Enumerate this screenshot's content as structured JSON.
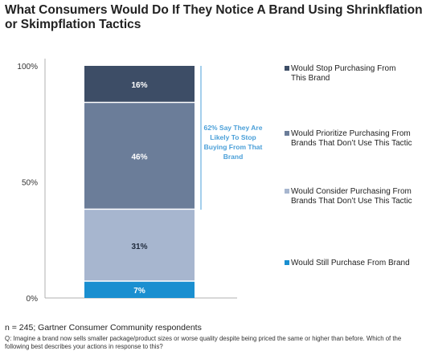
{
  "title": "What Consumers Would Do If They Notice A Brand Using Shrinkflation or Skimpflation Tactics",
  "footnote": "n = 245; Gartner Consumer Community respondents",
  "question": "Q: Imagine a brand now sells smaller package/product sizes or worse quality despite being priced the same or higher than before. Which of the following best describes your actions in response to this?",
  "chart_data": {
    "type": "bar",
    "stacked": true,
    "categories": [
      ""
    ],
    "series": [
      {
        "name": "Would Still Purchase From Brand",
        "values": [
          7
        ],
        "label": "7%",
        "color": "#1a8fd0"
      },
      {
        "name": "Would Consider Purchasing From Brands That Don’t Use This Tactic",
        "values": [
          31
        ],
        "label": "31%",
        "color": "#a7b6cf"
      },
      {
        "name": "Would Prioritize Purchasing From Brands That Don’t Use This Tactic",
        "values": [
          46
        ],
        "label": "46%",
        "color": "#6b7d99"
      },
      {
        "name": "Would Stop Purchasing From This Brand",
        "values": [
          16
        ],
        "label": "16%",
        "color": "#3d4d66"
      }
    ],
    "legend_order": [
      3,
      2,
      1,
      0
    ],
    "yticks": [
      "0%",
      "50%",
      "100%"
    ],
    "ylim": [
      0,
      100
    ],
    "legend_position": "right",
    "annotation": {
      "text": "62% Say They Are Likely To Stop Buying From That Brand",
      "lines": [
        "62% Say They Are",
        "Likely To Stop",
        "Buying From That",
        "Brand"
      ],
      "color": "#4a9fd8",
      "range": [
        38,
        100
      ]
    }
  }
}
